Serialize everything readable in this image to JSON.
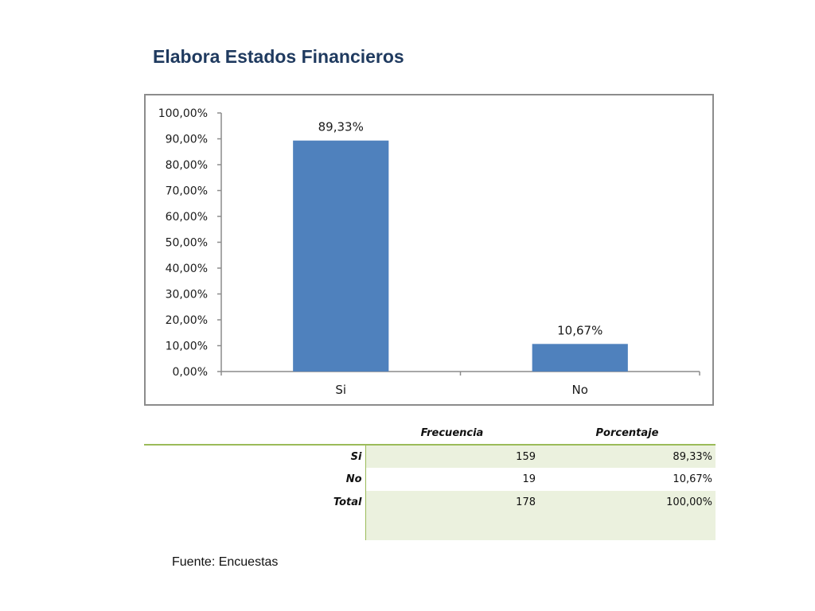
{
  "title": "Elabora Estados Financieros",
  "chart_data": {
    "type": "bar",
    "categories": [
      "Si",
      "No"
    ],
    "values": [
      89.33,
      10.67
    ],
    "value_labels": [
      "89,33%",
      "10,67%"
    ],
    "ylim": [
      0,
      100
    ],
    "yticks": [
      0,
      10,
      20,
      30,
      40,
      50,
      60,
      70,
      80,
      90,
      100
    ],
    "ytick_labels": [
      "0,00%",
      "10,00%",
      "20,00%",
      "30,00%",
      "40,00%",
      "50,00%",
      "60,00%",
      "70,00%",
      "80,00%",
      "90,00%",
      "100,00%"
    ],
    "bar_color": "#4f81bd",
    "grid": false,
    "legend": "none"
  },
  "table": {
    "headers": [
      "",
      "Frecuencia",
      "Porcentaje"
    ],
    "rows": [
      {
        "label": "Si",
        "frecuencia": "159",
        "porcentaje": "89,33%"
      },
      {
        "label": "No",
        "frecuencia": "19",
        "porcentaje": "10,67%"
      },
      {
        "label": "Total",
        "frecuencia": "178",
        "porcentaje": "100,00%"
      }
    ],
    "accent_color": "#9bbb59",
    "shade_color": "#ebf1de"
  },
  "source": "Fuente: Encuestas"
}
